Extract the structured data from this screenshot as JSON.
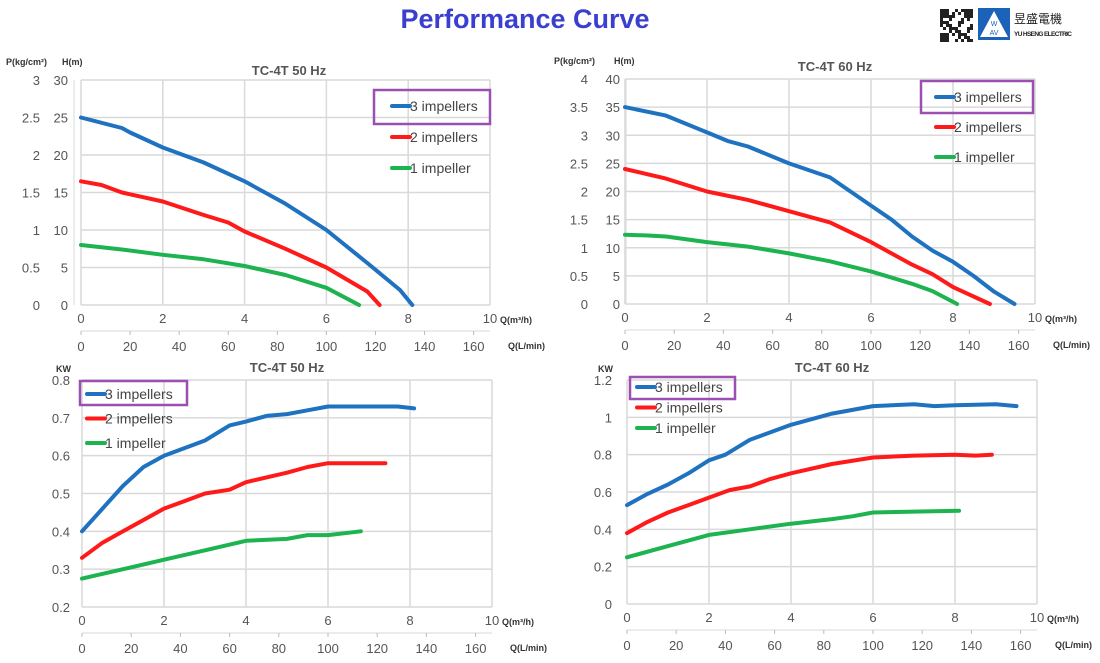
{
  "page_title": "Performance Curve",
  "logo": {
    "brand_cn": "昱盛電機",
    "brand_en": "YU HSENG ELECTRIC",
    "mark_top": "W",
    "mark_bottom": "AV"
  },
  "colors": {
    "title": "#3a3fcf",
    "3 impellers": "#1f72c0",
    "2 impellers": "#ff1a1a",
    "1 impeller": "#1db34f",
    "legend_highlight": "#9b4fb0",
    "grid": "#d9d9d9"
  },
  "chart_data": [
    {
      "type": "line",
      "title": "TC-4T 50 Hz",
      "ylabel": "H(m)",
      "ylabel2": "P(kg/cm²)",
      "xlabel": "Q(m³/h)",
      "xlabel2": "Q(L/min)",
      "xlim": [
        0,
        10
      ],
      "ylim": [
        0,
        30
      ],
      "y2lim": [
        0,
        3
      ],
      "xticks": [
        0,
        2,
        4,
        6,
        8,
        10
      ],
      "yticks": [
        0,
        5,
        10,
        15,
        20,
        25,
        30
      ],
      "y2ticks": [
        "0",
        "0.5",
        "1",
        "1.5",
        "2",
        "2.5",
        "3"
      ],
      "x2ticks": [
        0,
        20,
        40,
        60,
        80,
        100,
        120,
        140,
        160
      ],
      "grid": true,
      "legend": "top-right",
      "highlighted_legend": "3 impellers",
      "series": [
        {
          "name": "3 impellers",
          "x": [
            0,
            1,
            1.2,
            2,
            3,
            4,
            5,
            6,
            7,
            7.8,
            8.1
          ],
          "y": [
            25,
            23.6,
            23,
            21,
            19,
            16.5,
            13.5,
            10,
            5.6,
            2,
            0
          ]
        },
        {
          "name": "2 impellers",
          "x": [
            0,
            0.5,
            1,
            2,
            3,
            3.6,
            4,
            5,
            6,
            7,
            7.3
          ],
          "y": [
            16.5,
            16,
            15,
            13.8,
            12,
            11,
            9.8,
            7.5,
            5,
            1.8,
            0
          ]
        },
        {
          "name": "1 impeller",
          "x": [
            0,
            1,
            2,
            3,
            4,
            5,
            6,
            6.8
          ],
          "y": [
            8,
            7.4,
            6.7,
            6.1,
            5.2,
            4,
            2.3,
            0
          ]
        }
      ]
    },
    {
      "type": "line",
      "title": "TC-4T 60 Hz",
      "ylabel": "H(m)",
      "ylabel2": "P(kg/cm²)",
      "xlabel": "Q(m³/h)",
      "xlabel2": "Q(L/min)",
      "xlim": [
        0,
        10
      ],
      "ylim": [
        0,
        40
      ],
      "y2lim": [
        0,
        4
      ],
      "xticks": [
        0,
        2,
        4,
        6,
        8,
        10
      ],
      "yticks": [
        0,
        5,
        10,
        15,
        20,
        25,
        30,
        35,
        40
      ],
      "y2ticks": [
        "0",
        "0.5",
        "1",
        "1.5",
        "2",
        "2.5",
        "3",
        "3.5",
        "4"
      ],
      "x2ticks": [
        0,
        20,
        40,
        60,
        80,
        100,
        120,
        140,
        160
      ],
      "grid": true,
      "legend": "top-right",
      "highlighted_legend": "3 impellers",
      "series": [
        {
          "name": "3 impellers",
          "x": [
            0,
            1,
            2,
            2.5,
            3,
            4,
            5,
            6,
            6.5,
            7,
            7.5,
            8,
            8.5,
            9,
            9.5
          ],
          "y": [
            35,
            33.5,
            30.5,
            29,
            28,
            25,
            22.5,
            17.5,
            15,
            12,
            9.5,
            7.5,
            5,
            2.2,
            0
          ]
        },
        {
          "name": "2 impellers",
          "x": [
            0,
            1,
            2,
            3,
            4,
            5,
            6,
            6.5,
            7,
            7.5,
            8,
            8.9
          ],
          "y": [
            24,
            22.3,
            20,
            18.5,
            16.5,
            14.5,
            11,
            9,
            7,
            5.3,
            3,
            0
          ]
        },
        {
          "name": "1 impeller",
          "x": [
            0,
            0.5,
            1,
            2,
            3,
            4,
            5,
            6,
            7,
            7.5,
            8.1
          ],
          "y": [
            12.3,
            12.2,
            12,
            11,
            10.2,
            9,
            7.6,
            5.8,
            3.6,
            2.3,
            0
          ]
        }
      ]
    },
    {
      "type": "line",
      "title": "TC-4T 50 Hz",
      "ylabel": "KW",
      "xlabel": "Q(m³/h)",
      "xlabel2": "Q(L/min)",
      "xlim": [
        0,
        10
      ],
      "ylim": [
        0.2,
        0.8
      ],
      "xticks": [
        0,
        2,
        4,
        6,
        8,
        10
      ],
      "yticks": [
        "0.2",
        "0.3",
        "0.4",
        "0.5",
        "0.6",
        "0.7",
        "0.8"
      ],
      "x2ticks": [
        0,
        20,
        40,
        60,
        80,
        100,
        120,
        140,
        160
      ],
      "grid": true,
      "legend": "top-left",
      "highlighted_legend": "3 impellers",
      "series": [
        {
          "name": "3 impellers",
          "x": [
            0,
            0.5,
            1,
            1.5,
            2,
            2.5,
            3,
            3.6,
            4,
            4.5,
            5,
            5.5,
            6,
            7,
            7.7,
            8.1
          ],
          "y": [
            0.4,
            0.46,
            0.52,
            0.57,
            0.6,
            0.62,
            0.64,
            0.68,
            0.69,
            0.705,
            0.71,
            0.72,
            0.73,
            0.73,
            0.73,
            0.725
          ]
        },
        {
          "name": "2 impellers",
          "x": [
            0,
            0.5,
            1,
            1.5,
            2,
            2.5,
            3,
            3.6,
            4,
            5,
            5.5,
            6,
            7.4
          ],
          "y": [
            0.33,
            0.37,
            0.4,
            0.43,
            0.46,
            0.48,
            0.5,
            0.51,
            0.53,
            0.555,
            0.57,
            0.58,
            0.58
          ]
        },
        {
          "name": "1 impeller",
          "x": [
            0,
            1,
            2,
            3,
            4,
            5,
            5.5,
            6,
            6.8
          ],
          "y": [
            0.275,
            0.3,
            0.325,
            0.35,
            0.375,
            0.38,
            0.39,
            0.39,
            0.4
          ]
        }
      ]
    },
    {
      "type": "line",
      "title": "TC-4T 60 Hz",
      "ylabel": "KW",
      "xlabel": "Q(m³/h)",
      "xlabel2": "Q(L/min)",
      "xlim": [
        0,
        10
      ],
      "ylim": [
        0,
        1.2
      ],
      "xticks": [
        0,
        2,
        4,
        6,
        8,
        10
      ],
      "yticks": [
        "0",
        "0.2",
        "0.4",
        "0.6",
        "0.8",
        "1",
        "1.2"
      ],
      "x2ticks": [
        0,
        20,
        40,
        60,
        80,
        100,
        120,
        140,
        160
      ],
      "grid": true,
      "legend": "top-left",
      "highlighted_legend": "3 impellers",
      "series": [
        {
          "name": "3 impellers",
          "x": [
            0,
            0.5,
            1,
            1.5,
            2,
            2.4,
            3,
            3.5,
            4,
            4.5,
            5,
            6,
            7,
            7.5,
            8,
            9,
            9.5
          ],
          "y": [
            0.53,
            0.59,
            0.64,
            0.7,
            0.77,
            0.8,
            0.88,
            0.92,
            0.96,
            0.99,
            1.02,
            1.06,
            1.07,
            1.06,
            1.065,
            1.07,
            1.06
          ]
        },
        {
          "name": "2 impellers",
          "x": [
            0,
            0.5,
            1,
            1.5,
            2,
            2.5,
            3,
            3.5,
            4,
            5,
            6,
            7,
            8,
            8.5,
            8.9
          ],
          "y": [
            0.38,
            0.44,
            0.49,
            0.53,
            0.57,
            0.61,
            0.63,
            0.67,
            0.7,
            0.75,
            0.785,
            0.795,
            0.8,
            0.795,
            0.8
          ]
        },
        {
          "name": "1 impeller",
          "x": [
            0,
            1,
            2,
            3,
            4,
            5,
            5.5,
            6,
            7,
            8.1
          ],
          "y": [
            0.25,
            0.31,
            0.37,
            0.4,
            0.43,
            0.455,
            0.47,
            0.49,
            0.495,
            0.5
          ]
        }
      ]
    }
  ]
}
